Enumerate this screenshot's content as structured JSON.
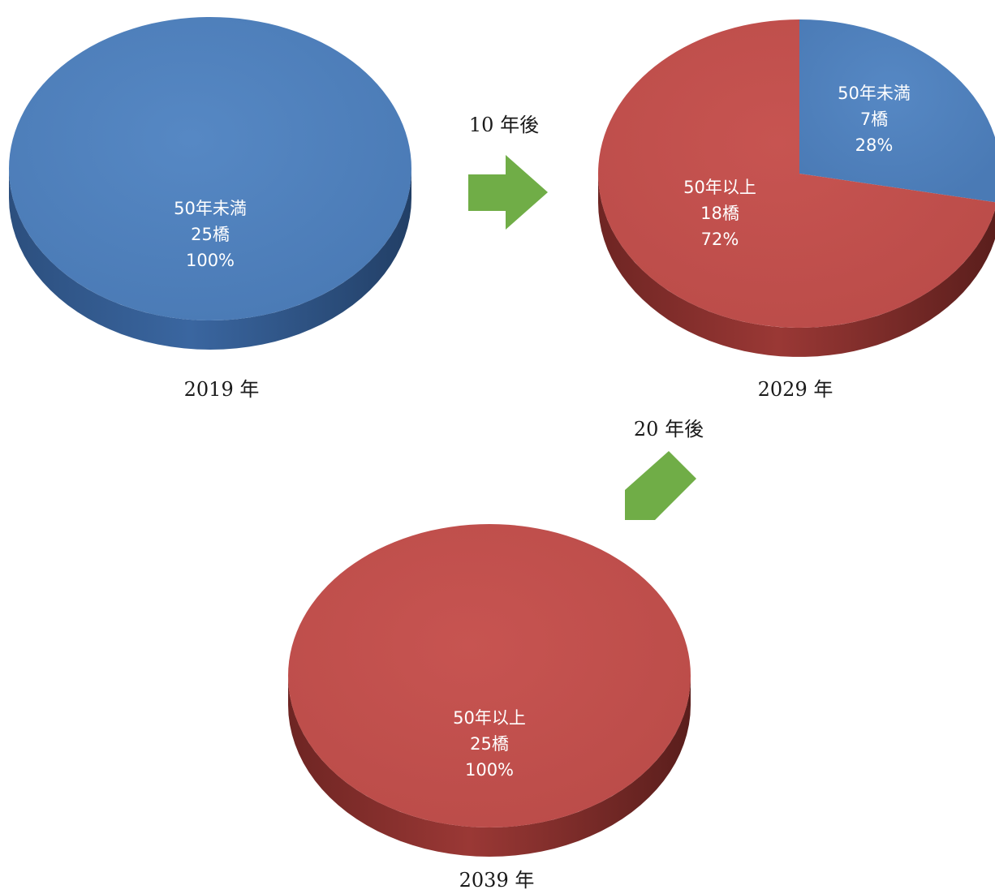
{
  "colors": {
    "under50": "#4F81BD",
    "under50_side": "#2F5589",
    "over50": "#C0504D",
    "over50_side": "#7A2A28",
    "arrow": "#70AD47"
  },
  "arrows": [
    {
      "label": "10 年後",
      "direction": "right"
    },
    {
      "label": "20 年後",
      "direction": "down-left"
    }
  ],
  "chart_data": [
    {
      "type": "pie",
      "title": "2019 年",
      "slices": [
        {
          "name": "50年未満",
          "value": 25,
          "count_label": "25橋",
          "percent_label": "100%",
          "color": "#4F81BD"
        }
      ]
    },
    {
      "type": "pie",
      "title": "2029 年",
      "slices": [
        {
          "name": "50年未満",
          "value": 7,
          "count_label": "7橋",
          "percent_label": "28%",
          "color": "#4F81BD"
        },
        {
          "name": "50年以上",
          "value": 18,
          "count_label": "18橋",
          "percent_label": "72%",
          "color": "#C0504D"
        }
      ]
    },
    {
      "type": "pie",
      "title": "2039 年",
      "slices": [
        {
          "name": "50年以上",
          "value": 25,
          "count_label": "25橋",
          "percent_label": "100%",
          "color": "#C0504D"
        }
      ]
    }
  ]
}
